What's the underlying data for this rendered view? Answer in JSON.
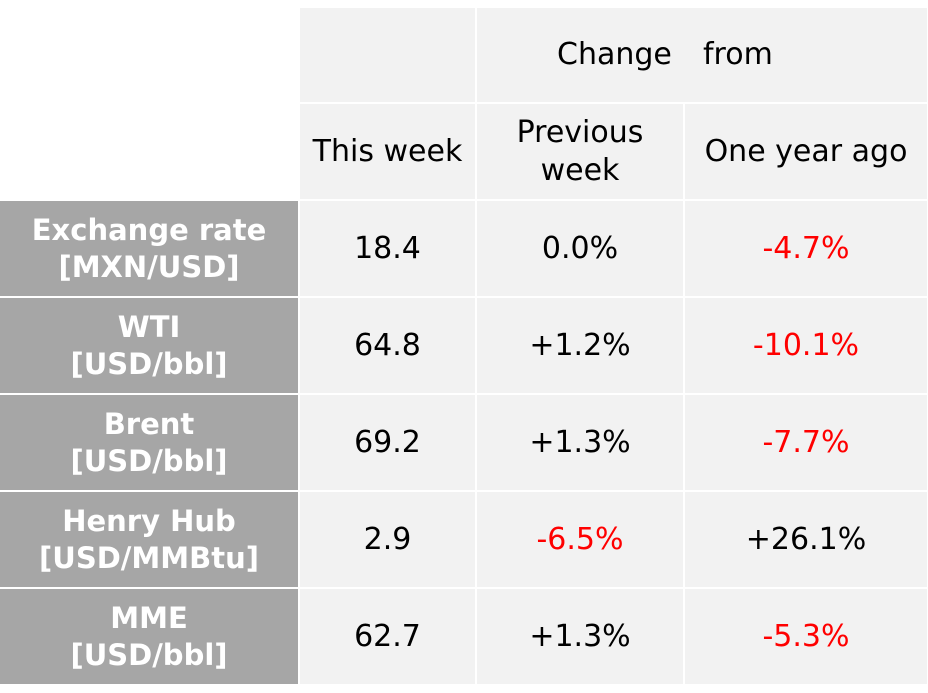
{
  "chart_data": {
    "type": "table",
    "header": {
      "group": {
        "word1": "Change",
        "word2": "from"
      },
      "columns": [
        "This week",
        "Previous week",
        "One year ago"
      ]
    },
    "rows": [
      {
        "label_line1": "Exchange rate",
        "label_line2": "[MXN/USD]",
        "this_week": "18.4",
        "prev_week": "0.0%",
        "year_ago": "-4.7%",
        "prev_neg": false,
        "year_neg": true
      },
      {
        "label_line1": "WTI",
        "label_line2": "[USD/bbl]",
        "this_week": "64.8",
        "prev_week": "+1.2%",
        "year_ago": "-10.1%",
        "prev_neg": false,
        "year_neg": true
      },
      {
        "label_line1": "Brent",
        "label_line2": "[USD/bbl]",
        "this_week": "69.2",
        "prev_week": "+1.3%",
        "year_ago": "-7.7%",
        "prev_neg": false,
        "year_neg": true
      },
      {
        "label_line1": "Henry Hub",
        "label_line2": "[USD/MMBtu]",
        "this_week": "2.9",
        "prev_week": "-6.5%",
        "year_ago": "+26.1%",
        "prev_neg": true,
        "year_neg": false
      },
      {
        "label_line1": "MME",
        "label_line2": "[USD/bbl]",
        "this_week": "62.7",
        "prev_week": "+1.3%",
        "year_ago": "-5.3%",
        "prev_neg": false,
        "year_neg": true
      }
    ],
    "colors": {
      "header_bg": "#f2f2f2",
      "label_bg": "#a6a6a6",
      "negative": "#ff0000"
    }
  }
}
